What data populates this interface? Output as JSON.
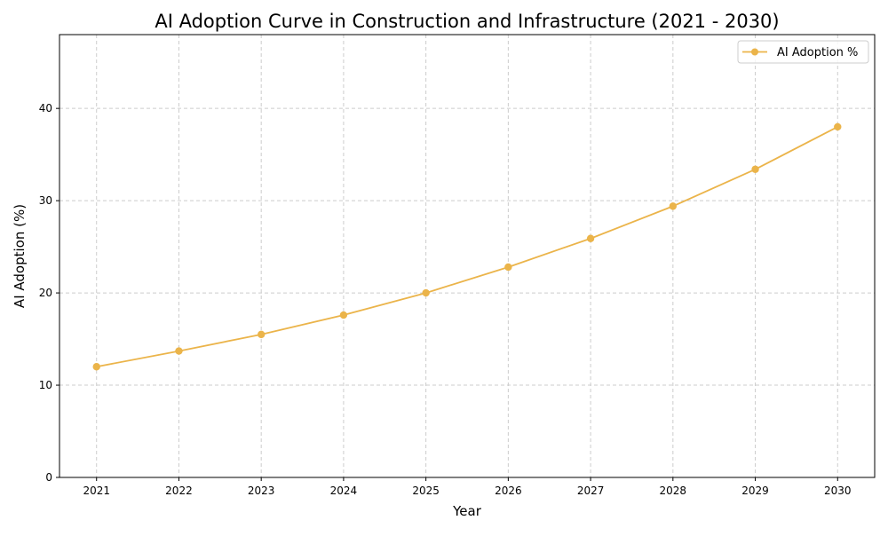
{
  "chart_data": {
    "type": "line",
    "title": "AI Adoption Curve in Construction and Infrastructure (2021 - 2030)",
    "xlabel": "Year",
    "ylabel": "AI Adoption (%)",
    "x": [
      2021,
      2022,
      2023,
      2024,
      2025,
      2026,
      2027,
      2028,
      2029,
      2030
    ],
    "xlim": [
      2020.55,
      2030.45
    ],
    "ylim": [
      0,
      48
    ],
    "yticks": [
      0,
      10,
      20,
      30,
      40
    ],
    "xticks": [
      2021,
      2022,
      2023,
      2024,
      2025,
      2026,
      2027,
      2028,
      2029,
      2030
    ],
    "grid": true,
    "legend_position": "top-right",
    "series": [
      {
        "name": "AI Adoption %",
        "color": "#ebb44a",
        "marker": "circle",
        "values": [
          12.0,
          13.7,
          15.5,
          17.6,
          20.0,
          22.8,
          25.9,
          29.4,
          33.4,
          38.0
        ]
      }
    ]
  }
}
